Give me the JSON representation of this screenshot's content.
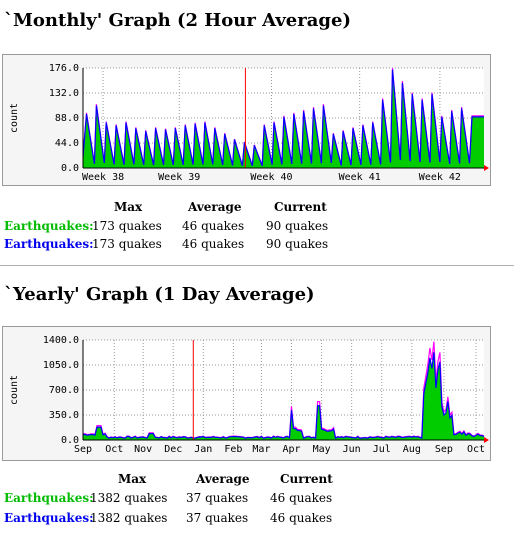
{
  "sections": [
    {
      "title": "`Monthly' Graph (2 Hour Average)",
      "stats": {
        "headers": [
          "Max",
          "Average",
          "Current"
        ],
        "rows": [
          {
            "label": "Earthquakes:",
            "max": "173 quakes",
            "average": "46 quakes",
            "current": "90 quakes"
          },
          {
            "label": "Earthquakes:",
            "max": "173 quakes",
            "average": "46 quakes",
            "current": "90 quakes"
          }
        ]
      }
    },
    {
      "title": "`Yearly' Graph (1 Day Average)",
      "stats": {
        "headers": [
          "Max",
          "Average",
          "Current"
        ],
        "rows": [
          {
            "label": "Earthquakes:",
            "max": "1382 quakes",
            "average": "37 quakes",
            "current": "46 quakes"
          },
          {
            "label": "Earthquakes:",
            "max": "1382 quakes",
            "average": "37 quakes",
            "current": "46 quakes"
          }
        ]
      }
    }
  ],
  "colors": {
    "fill": "#00cc00",
    "line_in": "#0000ff",
    "line_out": "#ff00ff",
    "marker": "#ff0000",
    "grid": "#999999",
    "label_green": "#00bb00",
    "label_blue": "#0000ee"
  },
  "chart_data": [
    {
      "type": "area",
      "title": "`Monthly' Graph (2 Hour Average)",
      "ylabel": "count",
      "ylim": [
        0,
        176
      ],
      "yticks": [
        "176.0",
        "132.0",
        "88.0",
        "44.0",
        "0.0"
      ],
      "xticks": [
        "Week 38",
        "Week 39",
        "Week 40",
        "Week 41",
        "Week 42"
      ],
      "grid": true,
      "current_marker_label": "Week 40",
      "series": [
        {
          "name": "Earthquakes",
          "max": 173,
          "average": 46,
          "current": 90,
          "peaks": [
            95,
            110,
            80,
            75,
            80,
            70,
            65,
            70,
            68,
            70,
            75,
            78,
            80,
            70,
            60,
            50,
            45,
            40,
            75,
            80,
            90,
            95,
            100,
            105,
            110,
            60,
            65,
            70,
            75,
            80,
            120,
            173,
            150,
            130,
            120,
            130,
            90,
            100,
            105
          ]
        }
      ]
    },
    {
      "type": "area",
      "title": "`Yearly' Graph (1 Day Average)",
      "ylabel": "count",
      "ylim": [
        0,
        1400
      ],
      "yticks": [
        "1400.0",
        "1050.0",
        "700.0",
        "350.0",
        "0.0"
      ],
      "xticks": [
        "Sep",
        "Oct",
        "Nov",
        "Dec",
        "Jan",
        "Feb",
        "Mar",
        "Apr",
        "May",
        "Jun",
        "Jul",
        "Aug",
        "Sep",
        "Oct"
      ],
      "grid": true,
      "series": [
        {
          "name": "Earthquakes",
          "max": 1382,
          "average": 37,
          "current": 46
        }
      ]
    }
  ]
}
